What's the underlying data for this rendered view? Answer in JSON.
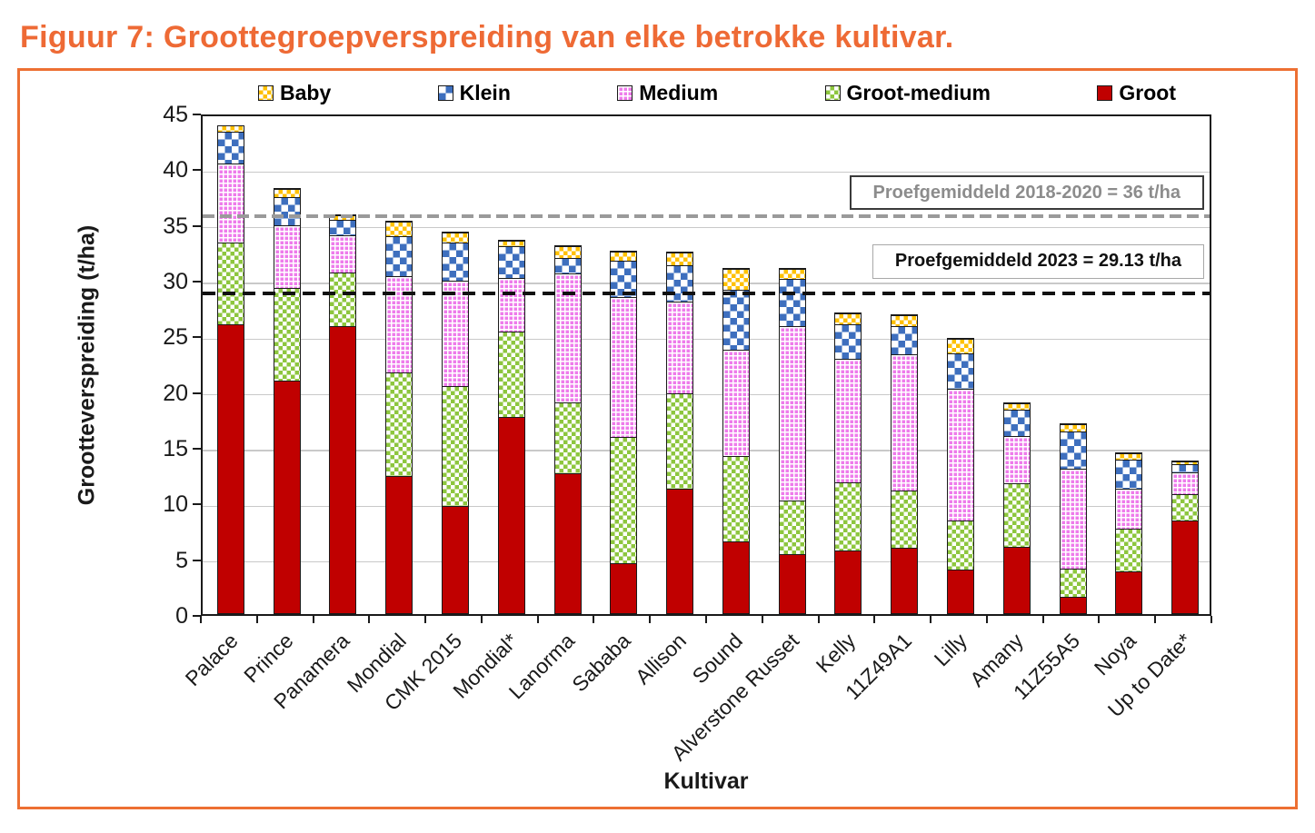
{
  "page_title": "Figuur 7: Groottegroepverspreiding van elke betrokke kultivar.",
  "colors": {
    "title_orange": "#EE6A35",
    "frame_border_orange": "#ED7033",
    "gridline_gray": "#c9c9c9",
    "axis_black": "#1a1a1a"
  },
  "chart_data": {
    "type": "bar",
    "stacked": true,
    "grid": true,
    "legend_position": "top",
    "xlabel": "Kultivar",
    "ylabel": "Grootteverspreiding (t/ha)",
    "ylim": [
      0,
      45
    ],
    "yticks": [
      0,
      5,
      10,
      15,
      20,
      25,
      30,
      35,
      40,
      45
    ],
    "categories": [
      "Palace",
      "Prince",
      "Panamera",
      "Mondial",
      "CMK 2015",
      "Mondial*",
      "Lanorma",
      "Sababa",
      "Allison",
      "Sound",
      "Alverstone Russet",
      "Kelly",
      "11Z49A1",
      "Lilly",
      "Amany",
      "11Z55A5",
      "Noya",
      "Up to Date*"
    ],
    "legend_order": [
      "Baby",
      "Klein",
      "Medium",
      "Groot-medium",
      "Groot"
    ],
    "series": [
      {
        "name": "Groot",
        "color": "#C00000",
        "pattern": "solid",
        "pattern_size": 0,
        "values": [
          26.0,
          21.0,
          25.9,
          12.4,
          9.7,
          17.7,
          12.6,
          4.5,
          11.2,
          6.5,
          5.3,
          5.7,
          5.9,
          3.9,
          6.0,
          1.5,
          3.8,
          8.4
        ]
      },
      {
        "name": "Groot-medium",
        "color": "#8DC63E",
        "pattern": "checker",
        "pattern_size": 9,
        "values": [
          7.4,
          8.3,
          4.8,
          9.3,
          10.8,
          7.7,
          6.4,
          11.4,
          8.6,
          7.7,
          4.9,
          6.1,
          5.2,
          4.5,
          5.8,
          2.5,
          3.9,
          2.4
        ]
      },
      {
        "name": "Medium",
        "color": "#EE7BEB",
        "pattern": "grid",
        "pattern_size": 5,
        "values": [
          7.1,
          5.7,
          3.4,
          8.7,
          9.5,
          4.8,
          11.6,
          12.6,
          8.3,
          9.6,
          15.7,
          11.2,
          12.3,
          11.9,
          4.2,
          9.1,
          3.6,
          2.0
        ]
      },
      {
        "name": "Klein",
        "color": "#3E6FBE",
        "pattern": "checker",
        "pattern_size": 15,
        "values": [
          2.9,
          2.5,
          1.4,
          3.6,
          3.4,
          2.9,
          1.4,
          3.3,
          3.3,
          5.4,
          4.3,
          3.1,
          2.5,
          3.2,
          2.4,
          3.4,
          2.6,
          0.7
        ]
      },
      {
        "name": "Baby",
        "color": "#FFC000",
        "pattern": "checker",
        "pattern_size": 9,
        "values": [
          0.5,
          0.7,
          0.4,
          1.3,
          0.9,
          0.5,
          1.1,
          0.8,
          1.1,
          1.9,
          0.9,
          1.0,
          1.0,
          1.3,
          0.6,
          0.6,
          0.6,
          0.3
        ]
      }
    ],
    "reference_lines": [
      {
        "label": "Proefgemiddeld 2018-2020 = 36 t/ha",
        "value": 36,
        "style": "dashed",
        "line_color": "#9a9a9a",
        "text_color": "#8c8c8c",
        "box_border_color": "#3a3a3a"
      },
      {
        "label": "Proefgemiddeld 2023 = 29.13 t/ha",
        "value": 29.13,
        "style": "dashed",
        "line_color": "#111111",
        "text_color": "#111111",
        "box_border_color": "#a8a8a8"
      }
    ]
  }
}
